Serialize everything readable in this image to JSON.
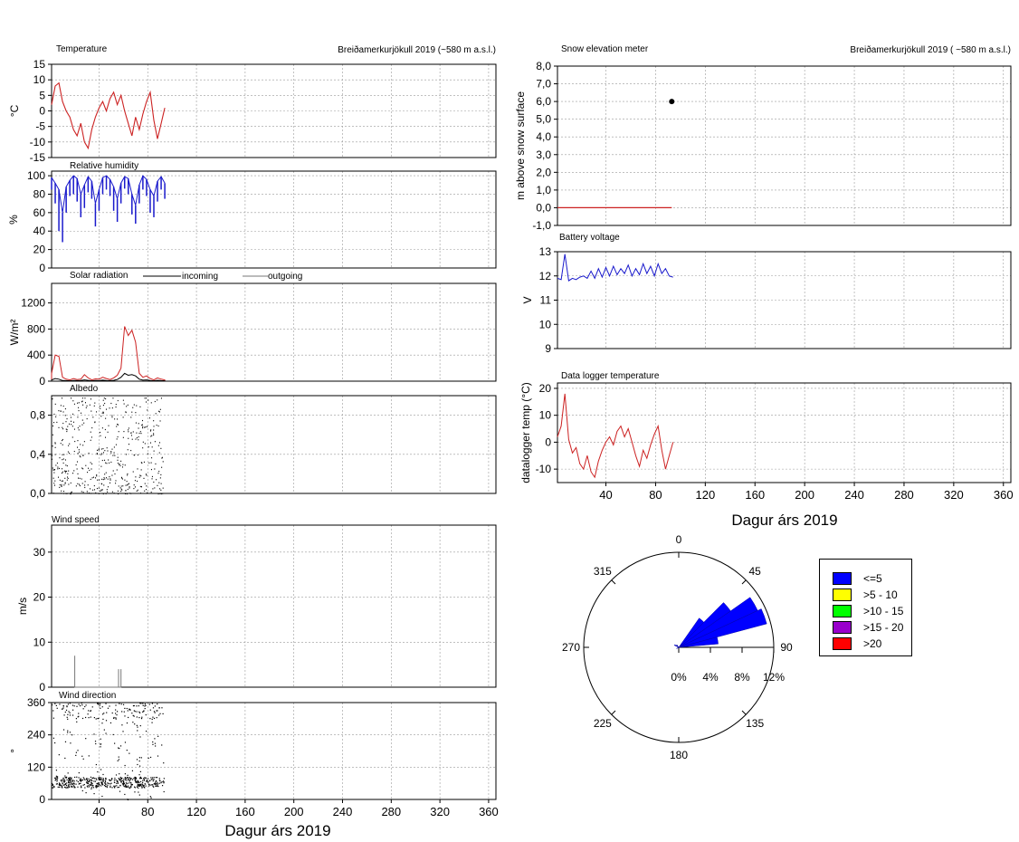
{
  "header": {
    "site_left": "Breiðamerkurjökull 2019 (~580 m a.s.l.)",
    "site_right": "Breiðamerkurjökull 2019 ( ~580 m a.s.l.)"
  },
  "xaxis": {
    "title": "Dagur árs 2019",
    "ticks": [
      40,
      80,
      120,
      160,
      200,
      240,
      280,
      320,
      360
    ],
    "range": [
      1,
      366
    ]
  },
  "colors": {
    "temperature": "#cc2222",
    "humidity": "#1a1acc",
    "incoming": "#cc2222",
    "outgoing": "#000000",
    "albedo": "#000000",
    "wind": "#000000",
    "snow_point": "#000000",
    "snow_line": "#cc2222",
    "battery": "#1a1acc",
    "logger": "#cc2222",
    "grid": "#9a9a9a"
  },
  "chart_data": [
    {
      "id": "temperature",
      "type": "line",
      "title": "Temperature",
      "ylabel": "°C",
      "ylim": [
        -15,
        15
      ],
      "yticks": [
        -15,
        -10,
        -5,
        0,
        5,
        10,
        15
      ],
      "x": [
        1,
        4,
        7,
        10,
        13,
        16,
        19,
        22,
        25,
        28,
        31,
        34,
        37,
        40,
        43,
        46,
        49,
        52,
        55,
        58,
        61,
        64,
        67,
        70,
        73,
        76,
        79,
        82,
        85,
        88,
        91,
        94
      ],
      "y": [
        2,
        8,
        9,
        3,
        0,
        -2,
        -6,
        -8,
        -4,
        -10,
        -12,
        -6,
        -2,
        1,
        3,
        0,
        4,
        6,
        2,
        5,
        0,
        -4,
        -8,
        -2,
        -6,
        -1,
        3,
        6,
        -3,
        -9,
        -4,
        1
      ]
    },
    {
      "id": "humidity",
      "type": "line",
      "title": "Relative humidity",
      "ylabel": "%",
      "ylim": [
        0,
        105
      ],
      "yticks": [
        0,
        20,
        40,
        60,
        80,
        100
      ],
      "x": [
        1,
        4,
        7,
        10,
        13,
        16,
        19,
        22,
        25,
        28,
        31,
        34,
        37,
        40,
        43,
        46,
        49,
        52,
        55,
        58,
        61,
        64,
        67,
        70,
        73,
        76,
        79,
        82,
        85,
        88,
        91,
        94
      ],
      "y": [
        98,
        92,
        85,
        60,
        88,
        95,
        100,
        97,
        80,
        90,
        99,
        94,
        70,
        85,
        98,
        100,
        96,
        88,
        75,
        92,
        99,
        97,
        80,
        68,
        90,
        100,
        96,
        85,
        78,
        94,
        99,
        92
      ],
      "y_min": [
        85,
        70,
        40,
        28,
        60,
        78,
        80,
        72,
        55,
        65,
        82,
        75,
        45,
        62,
        80,
        85,
        78,
        62,
        50,
        70,
        86,
        80,
        58,
        48,
        70,
        85,
        78,
        60,
        55,
        72,
        85,
        75
      ]
    },
    {
      "id": "solar",
      "type": "line",
      "title": "Solar radiation",
      "ylabel": "W/m²",
      "ylim": [
        0,
        1500
      ],
      "yticks": [
        0,
        400,
        800,
        1200
      ],
      "legend": [
        "incoming",
        "outgoing"
      ],
      "series": [
        {
          "name": "incoming",
          "x": [
            1,
            4,
            7,
            10,
            13,
            16,
            19,
            22,
            25,
            28,
            31,
            34,
            37,
            40,
            43,
            46,
            49,
            52,
            55,
            58,
            61,
            64,
            67,
            70,
            73,
            76,
            79,
            82,
            85,
            88,
            91,
            94
          ],
          "y": [
            120,
            400,
            380,
            60,
            30,
            20,
            40,
            25,
            30,
            100,
            50,
            20,
            35,
            30,
            60,
            40,
            25,
            50,
            90,
            200,
            840,
            700,
            780,
            600,
            120,
            60,
            80,
            40,
            20,
            50,
            30,
            20
          ]
        },
        {
          "name": "outgoing",
          "x": [
            1,
            4,
            7,
            10,
            13,
            16,
            19,
            22,
            25,
            28,
            31,
            34,
            37,
            40,
            43,
            46,
            49,
            52,
            55,
            58,
            61,
            64,
            67,
            70,
            73,
            76,
            79,
            82,
            85,
            88,
            91,
            94
          ],
          "y": [
            20,
            40,
            30,
            10,
            8,
            6,
            10,
            8,
            10,
            20,
            12,
            6,
            10,
            8,
            15,
            10,
            8,
            12,
            25,
            60,
            120,
            90,
            100,
            80,
            30,
            15,
            20,
            10,
            6,
            12,
            8,
            6
          ]
        }
      ]
    },
    {
      "id": "albedo",
      "type": "scatter",
      "title": "Albedo",
      "ylim": [
        0,
        1
      ],
      "yticks": [
        0.0,
        0.4,
        0.8
      ],
      "ytick_labels": [
        "0,0",
        "0,4",
        "0,8"
      ],
      "x_range": [
        1,
        93
      ]
    },
    {
      "id": "wind_speed",
      "type": "line",
      "title": "Wind speed",
      "ylabel": "m/s",
      "ylim": [
        0,
        36
      ],
      "yticks": [
        0,
        10,
        20,
        30
      ],
      "x": [
        20,
        20,
        20,
        56,
        56,
        56,
        58,
        58,
        58
      ],
      "y": [
        0,
        7,
        0,
        0,
        4,
        0,
        0,
        4,
        0
      ]
    },
    {
      "id": "wind_direction",
      "type": "scatter",
      "title": "Wind direction",
      "ylabel": "°",
      "ylim": [
        0,
        360
      ],
      "yticks": [
        0,
        120,
        240,
        360
      ],
      "x_range": [
        1,
        93
      ]
    },
    {
      "id": "snow",
      "type": "line",
      "title": "Snow elevation  meter",
      "ylabel": "m above snow surface",
      "ylim": [
        -1,
        8
      ],
      "yticks": [
        -1,
        0,
        1,
        2,
        3,
        4,
        5,
        6,
        7,
        8
      ],
      "ytick_labels": [
        "-1,0",
        "0,0",
        "1,0",
        "2,0",
        "3,0",
        "4,0",
        "5,0",
        "6,0",
        "7,0",
        "8,0"
      ],
      "x": [
        1,
        93
      ],
      "y": [
        0,
        0
      ],
      "point": {
        "x": 93,
        "y": 6
      }
    },
    {
      "id": "battery",
      "type": "line",
      "title": "Battery voltage",
      "ylabel": "V",
      "ylim": [
        9,
        13
      ],
      "yticks": [
        9,
        10,
        11,
        12,
        13
      ],
      "x": [
        1,
        4,
        7,
        10,
        13,
        16,
        19,
        22,
        25,
        28,
        31,
        34,
        37,
        40,
        43,
        46,
        49,
        52,
        55,
        58,
        61,
        64,
        67,
        70,
        73,
        76,
        79,
        82,
        85,
        88,
        91,
        94
      ],
      "y": [
        11.9,
        11.85,
        12.9,
        11.8,
        11.9,
        11.85,
        11.95,
        12.0,
        11.9,
        12.2,
        11.9,
        12.3,
        11.95,
        12.35,
        12.0,
        12.4,
        12.05,
        12.3,
        12.1,
        12.45,
        12.0,
        12.3,
        12.05,
        12.5,
        12.1,
        12.4,
        12.0,
        12.5,
        12.1,
        12.3,
        12.0,
        11.95
      ]
    },
    {
      "id": "logger",
      "type": "line",
      "title": "Data logger temperature",
      "ylabel": "datalogger temp (°C)",
      "ylim": [
        -15,
        22
      ],
      "yticks": [
        -10,
        0,
        10,
        20
      ],
      "x": [
        1,
        4,
        7,
        10,
        13,
        16,
        19,
        22,
        25,
        28,
        31,
        34,
        37,
        40,
        43,
        46,
        49,
        52,
        55,
        58,
        61,
        64,
        67,
        70,
        73,
        76,
        79,
        82,
        85,
        88,
        91,
        94
      ],
      "y": [
        2,
        6,
        18,
        1,
        -4,
        -2,
        -8,
        -10,
        -5,
        -11,
        -13,
        -7,
        -3,
        0,
        2,
        -1,
        4,
        6,
        2,
        5,
        0,
        -5,
        -9,
        -3,
        -6,
        -1,
        3,
        6,
        -3,
        -10,
        -5,
        0
      ]
    },
    {
      "id": "wind_rose",
      "type": "pie",
      "direction_labels": [
        "0",
        "45",
        "90",
        "135",
        "180",
        "225",
        "270",
        "315"
      ],
      "radial_labels": [
        "0%",
        "4%",
        "8%",
        "12%"
      ],
      "legend": [
        {
          "label": "<=5",
          "color": "#0000ff"
        },
        {
          "label": ">5 - 10",
          "color": "#ffff00"
        },
        {
          "label": ">10 - 15",
          "color": "#00ff00"
        },
        {
          "label": ">15 - 20",
          "color": "#9900cc"
        },
        {
          "label": ">20",
          "color": "#ff0000"
        }
      ],
      "sectors": [
        {
          "dir": 40,
          "pct": 4.5
        },
        {
          "dir": 50,
          "pct": 8.0
        },
        {
          "dir": 60,
          "pct": 11.0
        },
        {
          "dir": 70,
          "pct": 11.5
        },
        {
          "dir": 80,
          "pct": 5.0
        },
        {
          "dir": 300,
          "pct": 0.6
        },
        {
          "dir": 320,
          "pct": 0.4
        },
        {
          "dir": 240,
          "pct": 0.3
        }
      ]
    }
  ]
}
